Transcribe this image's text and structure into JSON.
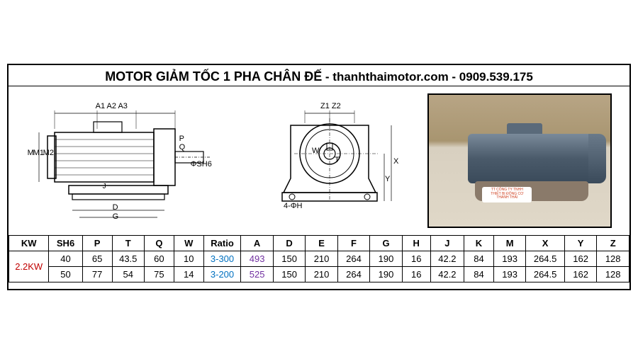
{
  "title": {
    "main": "MOTOR GIẢM TỐC 1 PHA CHÂN ĐẾ",
    "sub": " - thanhthaimotor.com - 0909.539.175"
  },
  "drawings": {
    "side": {
      "labels": {
        "top": "A1 A2 A3",
        "left1": "M",
        "left2": "M1",
        "left3": "M2",
        "right1": "P",
        "right2": "Q",
        "right3": "ΦSH6",
        "bottom1": "J",
        "bottom2": "D",
        "bottom3": "G"
      }
    },
    "front": {
      "labels": {
        "top": "Z1 Z2",
        "center1": "W",
        "center2": "T",
        "right1": "X",
        "right2": "Y",
        "bottom": "4-ΦH"
      }
    }
  },
  "photo": {
    "badge_line1": "TT CÔNG TY TNHH",
    "badge_line2": "THIẾT BỊ ĐỘNG CƠ",
    "badge_line3": "THANH THÁI"
  },
  "table": {
    "type": "table",
    "columns": [
      "KW",
      "SH6",
      "P",
      "T",
      "Q",
      "W",
      "Ratio",
      "A",
      "D",
      "E",
      "F",
      "G",
      "H",
      "J",
      "K",
      "M",
      "X",
      "Y",
      "Z"
    ],
    "rows": [
      {
        "KW": "2.2KW",
        "SH6": "40",
        "P": "65",
        "T": "43.5",
        "Q": "60",
        "W": "10",
        "Ratio": "3-300",
        "A": "493",
        "D": "150",
        "E": "210",
        "F": "264",
        "G": "190",
        "H": "16",
        "J": "42.2",
        "K": "84",
        "M": "193",
        "X": "264.5",
        "Y": "162",
        "Z": "128"
      },
      {
        "KW": "",
        "SH6": "50",
        "P": "77",
        "T": "54",
        "Q": "75",
        "W": "14",
        "Ratio": "3-200",
        "A": "525",
        "D": "150",
        "E": "210",
        "F": "264",
        "G": "190",
        "H": "16",
        "J": "42.2",
        "K": "84",
        "M": "193",
        "X": "264.5",
        "Y": "162",
        "Z": "128"
      }
    ],
    "col_widths_pct": [
      6.2,
      5.2,
      4.6,
      5.0,
      4.6,
      4.6,
      5.8,
      5.0,
      5.0,
      5.0,
      5.0,
      5.0,
      4.4,
      5.2,
      4.6,
      5.0,
      6.0,
      5.0,
      5.0
    ],
    "header_color": "#000000",
    "kw_color": "#c00000",
    "ratio_color": "#0070c0",
    "a_color": "#7030a0",
    "xy_bold": true,
    "border_color": "#000000",
    "font_size": 13
  }
}
